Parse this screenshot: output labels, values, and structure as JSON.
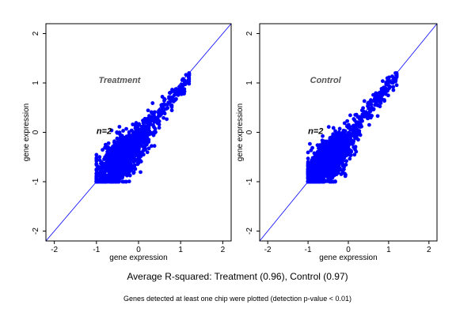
{
  "chart_data": [
    {
      "type": "scatter",
      "panel_label": "Treatment",
      "n_label": "n=2",
      "xlabel": "gene expression",
      "ylabel": "gene expression",
      "xlim": [
        -2.2,
        2.2
      ],
      "ylim": [
        -2.2,
        2.2
      ],
      "xticks": [
        -2,
        -1,
        0,
        1,
        2
      ],
      "yticks": [
        -2,
        -1,
        0,
        1,
        2
      ],
      "reference_line": "y = x",
      "point_color": "#0000ff",
      "line_color": "#0000ff",
      "cloud": {
        "center": [
          -0.45,
          -0.55
        ],
        "min": [
          -1.0,
          -1.0
        ],
        "max": [
          1.2,
          1.2
        ],
        "r_squared": 0.96
      }
    },
    {
      "type": "scatter",
      "panel_label": "Control",
      "n_label": "n=2",
      "xlabel": "gene expression",
      "ylabel": "gene expression",
      "xlim": [
        -2.2,
        2.2
      ],
      "ylim": [
        -2.2,
        2.2
      ],
      "xticks": [
        -2,
        -1,
        0,
        1,
        2
      ],
      "yticks": [
        -2,
        -1,
        0,
        1,
        2
      ],
      "reference_line": "y = x",
      "point_color": "#0000ff",
      "line_color": "#0000ff",
      "cloud": {
        "center": [
          -0.55,
          -0.6
        ],
        "min": [
          -1.0,
          -1.0
        ],
        "max": [
          1.2,
          1.2
        ],
        "r_squared": 0.97
      }
    }
  ],
  "summary_text": "Average R-squared: Treatment (0.96), Control (0.97)",
  "footnote_text": "Genes detected at least one chip were plotted (detection p-value < 0.01)"
}
